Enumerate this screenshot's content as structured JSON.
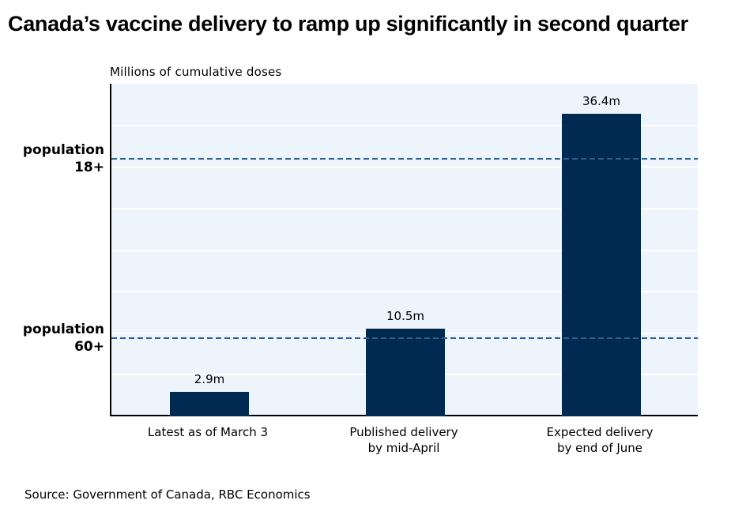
{
  "title": "Canada’s vaccine delivery to ramp up significantly in second quarter",
  "subtitle": "Millions of cumulative doses",
  "source": "Source: Government of Canada, RBC Economics",
  "colors": {
    "bar": "#002a52",
    "plot_background": "#edf4fb",
    "gridline": "#ffffff",
    "reference_line": "#2f5e8c",
    "axis": "#000000",
    "text": "#000000"
  },
  "chart_data": {
    "type": "bar",
    "title": "Canada’s vaccine delivery to ramp up significantly in second quarter",
    "xlabel": "",
    "ylabel": "Millions of cumulative doses",
    "categories": [
      "Latest as of March 3",
      "Published delivery\nby mid-April",
      "Expected delivery\nby end of June"
    ],
    "values": [
      2.9,
      10.5,
      36.4
    ],
    "value_labels": [
      "2.9m",
      "10.5m",
      "36.4m"
    ],
    "ylim": [
      0,
      40
    ],
    "gridlines": [
      5,
      10,
      15,
      20,
      25,
      30,
      35
    ],
    "grid": "on",
    "legend": "none",
    "reference_lines": [
      {
        "label": "population\n18+",
        "value": 31.0
      },
      {
        "label": "population\n60+",
        "value": 9.4
      }
    ]
  }
}
